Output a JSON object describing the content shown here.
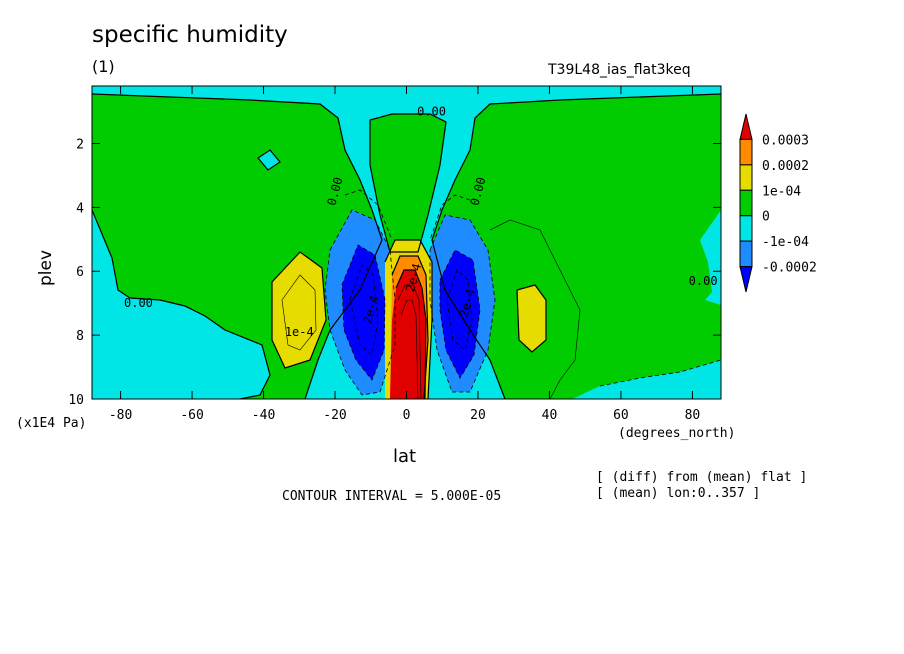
{
  "title": "specific humidity",
  "subtitle": "(1)",
  "experiment": "T39L48_ias_flat3keq",
  "chart_data": {
    "type": "heatmap",
    "xlabel": "lat",
    "ylabel": "plev",
    "x_unit": "(degrees_north)",
    "y_unit": "(x1E4 Pa)",
    "xlim": [
      -88,
      88
    ],
    "ylim": [
      10,
      0.2
    ],
    "x_ticks": [
      -80,
      -60,
      -40,
      -20,
      0,
      20,
      40,
      60,
      80
    ],
    "y_ticks": [
      2,
      4,
      6,
      8,
      10
    ],
    "legend": {
      "placement": "right",
      "labels": [
        "0.0003",
        "0.0002",
        "1e-04",
        "0",
        "-1e-04",
        "-0.0002"
      ],
      "colors": [
        "#e00000",
        "#ff8c00",
        "#e6dc00",
        "#00cc00",
        "#00e6e6",
        "#1e8cff",
        "#0000ff"
      ]
    },
    "contour_labels": [
      {
        "text": "0.00",
        "lat": 7,
        "plev": 1.0
      },
      {
        "text": "0.00",
        "lat": -20,
        "plev": 3.5
      },
      {
        "text": "0.00",
        "lat": 20,
        "plev": 3.5
      },
      {
        "text": "0.00",
        "lat": -75,
        "plev": 7.0
      },
      {
        "text": "0.00",
        "lat": 83,
        "plev": 6.3
      },
      {
        "text": "1e-4",
        "lat": -30,
        "plev": 7.9
      },
      {
        "text": "2e-4",
        "lat": 2,
        "plev": 6.2
      },
      {
        "text": "2e-4",
        "lat": 17,
        "plev": 7.0
      },
      {
        "text": "2e-4",
        "lat": -10,
        "plev": 7.2
      }
    ],
    "contour_interval": "CONTOUR INTERVAL = 5.000E-05"
  },
  "notes": [
    "[ (diff) from (mean) flat ]",
    "[ (mean) lon:0..357 ]"
  ]
}
